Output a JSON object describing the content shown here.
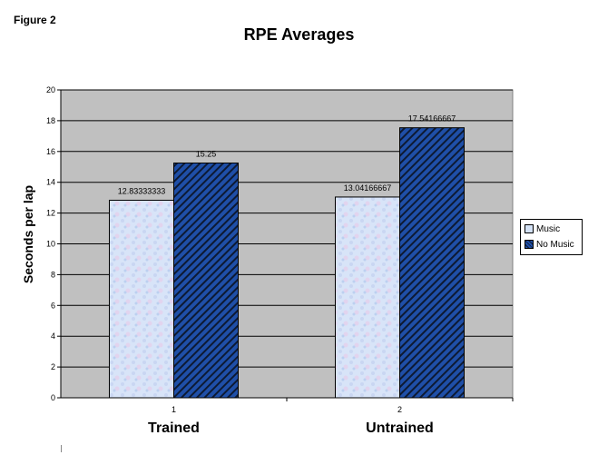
{
  "figure_label": "Figure 2",
  "chart_data": {
    "type": "bar",
    "title": "RPE Averages",
    "ylabel": "Seconds per lap",
    "xlabel": "",
    "categories": [
      "1",
      "2"
    ],
    "group_labels": [
      "Trained",
      "Untrained"
    ],
    "ylim": [
      0,
      20
    ],
    "yticks": [
      0,
      2,
      4,
      6,
      8,
      10,
      12,
      14,
      16,
      18,
      20
    ],
    "grid": true,
    "legend_position": "right",
    "series": [
      {
        "name": "Music",
        "values": [
          12.83333333,
          13.04166667
        ],
        "labels": [
          "12.83333333",
          "13.04166667"
        ],
        "color": "#d4e2f6",
        "pattern": "mottled"
      },
      {
        "name": "No Music",
        "values": [
          15.25,
          17.54166667
        ],
        "labels": [
          "15.25",
          "17.54166667"
        ],
        "color": "#1f4fa8",
        "pattern": "diagonal-hatch"
      }
    ],
    "plot_background": "#c0c0c0"
  }
}
